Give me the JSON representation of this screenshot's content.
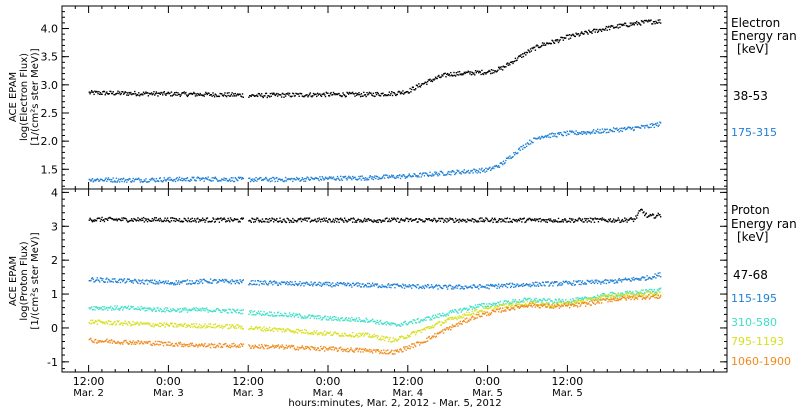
{
  "chart_data": [
    {
      "type": "scatter",
      "panel": "electron",
      "ylabel": [
        "ACE EPAM",
        "log(Electron Flux)",
        "[1/(cm²s ster MeV)]"
      ],
      "ylim": [
        1.15,
        4.4
      ],
      "yticks": [
        1.5,
        2.0,
        2.5,
        3.0,
        3.5,
        4.0
      ],
      "ytick_labels": [
        "1.5",
        "2.0",
        "2.5",
        "3.0",
        "3.5",
        "4.0"
      ],
      "legend_title": [
        "Electron",
        "Energy ran",
        "[keV]"
      ],
      "series": [
        {
          "name": "38-53",
          "color": "#000000",
          "points": [
            [
              0.0,
              2.87
            ],
            [
              6.0,
              2.86
            ],
            [
              12.0,
              2.85
            ],
            [
              18.0,
              2.84
            ],
            [
              23.0,
              2.83
            ],
            [
              24.0,
              2.82
            ],
            [
              30.0,
              2.83
            ],
            [
              36.0,
              2.84
            ],
            [
              42.0,
              2.84
            ],
            [
              46.0,
              2.86
            ],
            [
              48.0,
              2.9
            ],
            [
              50.0,
              3.02
            ],
            [
              52.0,
              3.12
            ],
            [
              54.0,
              3.2
            ],
            [
              57.0,
              3.22
            ],
            [
              60.0,
              3.24
            ],
            [
              62.0,
              3.3
            ],
            [
              64.0,
              3.45
            ],
            [
              66.0,
              3.6
            ],
            [
              68.0,
              3.72
            ],
            [
              70.0,
              3.78
            ],
            [
              72.0,
              3.86
            ],
            [
              75.0,
              3.94
            ],
            [
              78.0,
              4.02
            ],
            [
              81.0,
              4.08
            ],
            [
              84.0,
              4.13
            ],
            [
              86.0,
              4.14
            ]
          ]
        },
        {
          "name": "175-315",
          "color": "#1e7fd6",
          "points": [
            [
              0.0,
              1.33
            ],
            [
              6.0,
              1.32
            ],
            [
              12.0,
              1.33
            ],
            [
              18.0,
              1.34
            ],
            [
              23.0,
              1.33
            ],
            [
              24.0,
              1.33
            ],
            [
              30.0,
              1.33
            ],
            [
              36.0,
              1.35
            ],
            [
              42.0,
              1.36
            ],
            [
              48.0,
              1.39
            ],
            [
              54.0,
              1.45
            ],
            [
              60.0,
              1.5
            ],
            [
              62.0,
              1.6
            ],
            [
              64.0,
              1.8
            ],
            [
              66.0,
              1.98
            ],
            [
              68.0,
              2.1
            ],
            [
              70.0,
              2.12
            ],
            [
              72.0,
              2.15
            ],
            [
              75.0,
              2.17
            ],
            [
              78.0,
              2.2
            ],
            [
              81.0,
              2.23
            ],
            [
              84.0,
              2.27
            ],
            [
              86.0,
              2.32
            ]
          ]
        }
      ]
    },
    {
      "type": "scatter",
      "panel": "proton",
      "ylabel": [
        "ACE EPAM",
        "log(Proton Flux)",
        "[1/(cm²s ster MeV)]"
      ],
      "ylim": [
        -1.3,
        4.1
      ],
      "yticks": [
        -1,
        0,
        1,
        2,
        3,
        4
      ],
      "ytick_labels": [
        "-1",
        "0",
        "1",
        "2",
        "3",
        "4"
      ],
      "legend_title": [
        "Proton",
        "Energy ran",
        "[keV]"
      ],
      "series": [
        {
          "name": "47-68",
          "color": "#000000",
          "points": [
            [
              0.0,
              3.22
            ],
            [
              12.0,
              3.21
            ],
            [
              23.0,
              3.2
            ],
            [
              24.0,
              3.2
            ],
            [
              36.0,
              3.2
            ],
            [
              48.0,
              3.2
            ],
            [
              60.0,
              3.2
            ],
            [
              72.0,
              3.2
            ],
            [
              80.0,
              3.2
            ],
            [
              82.0,
              3.22
            ],
            [
              83.0,
              3.5
            ],
            [
              84.0,
              3.3
            ],
            [
              86.0,
              3.35
            ]
          ]
        },
        {
          "name": "115-195",
          "color": "#1e7fd6",
          "points": [
            [
              0.0,
              1.45
            ],
            [
              6.0,
              1.4
            ],
            [
              12.0,
              1.35
            ],
            [
              18.0,
              1.4
            ],
            [
              23.0,
              1.38
            ],
            [
              24.0,
              1.36
            ],
            [
              30.0,
              1.33
            ],
            [
              36.0,
              1.3
            ],
            [
              42.0,
              1.28
            ],
            [
              48.0,
              1.25
            ],
            [
              54.0,
              1.22
            ],
            [
              60.0,
              1.24
            ],
            [
              66.0,
              1.3
            ],
            [
              72.0,
              1.34
            ],
            [
              78.0,
              1.38
            ],
            [
              84.0,
              1.5
            ],
            [
              86.0,
              1.6
            ]
          ]
        },
        {
          "name": "310-580",
          "color": "#3ee0c8",
          "points": [
            [
              0.0,
              0.62
            ],
            [
              6.0,
              0.6
            ],
            [
              12.0,
              0.55
            ],
            [
              18.0,
              0.55
            ],
            [
              23.0,
              0.5
            ],
            [
              24.0,
              0.48
            ],
            [
              30.0,
              0.4
            ],
            [
              36.0,
              0.3
            ],
            [
              42.0,
              0.25
            ],
            [
              46.0,
              0.1
            ],
            [
              50.0,
              0.25
            ],
            [
              54.0,
              0.45
            ],
            [
              58.0,
              0.65
            ],
            [
              62.0,
              0.75
            ],
            [
              66.0,
              0.85
            ],
            [
              70.0,
              0.8
            ],
            [
              74.0,
              0.85
            ],
            [
              78.0,
              1.0
            ],
            [
              82.0,
              1.05
            ],
            [
              86.0,
              1.15
            ]
          ]
        },
        {
          "name": "795-1193",
          "color": "#d7e01e",
          "points": [
            [
              0.0,
              0.2
            ],
            [
              6.0,
              0.15
            ],
            [
              12.0,
              0.1
            ],
            [
              18.0,
              0.08
            ],
            [
              23.0,
              0.05
            ],
            [
              24.0,
              0.02
            ],
            [
              30.0,
              -0.05
            ],
            [
              36.0,
              -0.15
            ],
            [
              42.0,
              -0.2
            ],
            [
              46.0,
              -0.35
            ],
            [
              50.0,
              -0.05
            ],
            [
              54.0,
              0.25
            ],
            [
              58.0,
              0.5
            ],
            [
              62.0,
              0.65
            ],
            [
              66.0,
              0.75
            ],
            [
              70.0,
              0.7
            ],
            [
              74.0,
              0.8
            ],
            [
              78.0,
              0.95
            ],
            [
              82.0,
              1.0
            ],
            [
              86.0,
              1.05
            ]
          ]
        },
        {
          "name": "1060-1900",
          "color": "#f08a1c",
          "points": [
            [
              0.0,
              -0.35
            ],
            [
              6.0,
              -0.4
            ],
            [
              12.0,
              -0.45
            ],
            [
              18.0,
              -0.5
            ],
            [
              23.0,
              -0.5
            ],
            [
              24.0,
              -0.52
            ],
            [
              30.0,
              -0.55
            ],
            [
              36.0,
              -0.6
            ],
            [
              42.0,
              -0.65
            ],
            [
              46.0,
              -0.7
            ],
            [
              50.0,
              -0.4
            ],
            [
              54.0,
              0.0
            ],
            [
              58.0,
              0.35
            ],
            [
              62.0,
              0.55
            ],
            [
              66.0,
              0.7
            ],
            [
              70.0,
              0.65
            ],
            [
              74.0,
              0.7
            ],
            [
              78.0,
              0.85
            ],
            [
              82.0,
              0.92
            ],
            [
              86.0,
              0.95
            ]
          ]
        }
      ]
    }
  ],
  "xaxis": {
    "xlim": [
      -4,
      96
    ],
    "ticks": [
      {
        "x": 0,
        "top": "12:00",
        "bottom": "Mar. 2"
      },
      {
        "x": 12,
        "top": "0:00",
        "bottom": "Mar. 3"
      },
      {
        "x": 24,
        "top": "12:00",
        "bottom": "Mar. 3"
      },
      {
        "x": 36,
        "top": "0:00",
        "bottom": "Mar. 4"
      },
      {
        "x": 48,
        "top": "12:00",
        "bottom": "Mar. 4"
      },
      {
        "x": 60,
        "top": "0:00",
        "bottom": "Mar. 5"
      },
      {
        "x": 72,
        "top": "12:00",
        "bottom": "Mar. 5"
      }
    ],
    "label": "hours:minutes, Mar.  2, 2012 - Mar.  5, 2012"
  }
}
